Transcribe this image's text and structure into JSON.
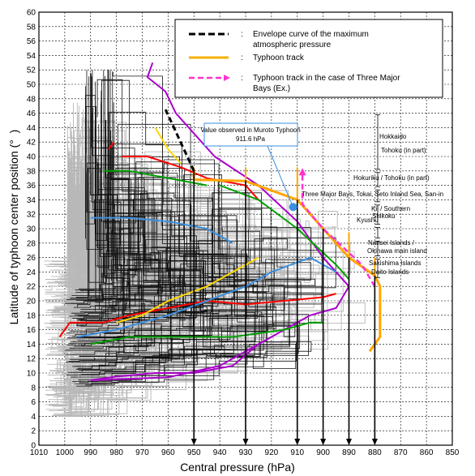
{
  "chart_data": {
    "type": "line",
    "xlabel": "Central pressure (hPa)",
    "ylabel": "Latitude of typhoon center position (°  )",
    "xlim": [
      1010,
      850
    ],
    "ylim": [
      0,
      60
    ],
    "x_ticks": [
      1010,
      1000,
      990,
      980,
      970,
      960,
      950,
      940,
      930,
      920,
      910,
      900,
      890,
      880,
      870,
      860,
      850
    ],
    "y_ticks": [
      0,
      2,
      4,
      6,
      8,
      10,
      12,
      14,
      16,
      18,
      20,
      22,
      24,
      26,
      28,
      30,
      32,
      34,
      36,
      38,
      40,
      42,
      44,
      46,
      48,
      50,
      52,
      54,
      56,
      58,
      60
    ],
    "grid": true,
    "legend": {
      "placement": "top-right",
      "entries": [
        {
          "label": "Envelope curve of the maximum atmospheric pressure",
          "style": "dashed",
          "color": "#000000"
        },
        {
          "label": "Typhoon track",
          "style": "solid",
          "color": "#f5b000"
        },
        {
          "label": "Typhoon track in the case of Three Major Bays (Ex.)",
          "style": "dashed-arrow",
          "color": "#ff33cc"
        }
      ],
      "separator": ":"
    },
    "annotation": {
      "text_line1": "Value observed in Muroto Typhoon",
      "text_line2": "911.6 hPa",
      "point": {
        "x": 911.6,
        "y": 33
      },
      "color": "#3a8fe0"
    },
    "regions": [
      {
        "label": "Hokkaido",
        "y_from": 38,
        "y_to": 46
      },
      {
        "label": "Tohoku (in part)",
        "y_from": 38,
        "y_to": 46
      },
      {
        "label": "Hokuriku / Tohoku (in part)",
        "y_from": 35.6,
        "y_to": 38
      },
      {
        "label": "Three Major Bays, Tokai, Seto Inland Sea, San-in",
        "y_from": 33.5,
        "y_to": 35.6
      },
      {
        "label": "Kii / Southern",
        "y_from": 30.4,
        "y_to": 33.5
      },
      {
        "label": "Shikoku",
        "y_from": 30.4,
        "y_to": 33.5
      },
      {
        "label": "Kyushu",
        "y_from": 28.5,
        "y_to": 30.4
      },
      {
        "label": "Nansei Islands /",
        "y_from": 26,
        "y_to": 28.5
      },
      {
        "label": "Okinawa main island",
        "y_from": 26,
        "y_to": 28.5
      },
      {
        "label": "Sakishima Islands",
        "y_from": 23,
        "y_to": 26
      },
      {
        "label": "Daito Islands",
        "y_from": 23,
        "y_to": 26
      }
    ],
    "envelope_curve": {
      "name": "Envelope curve of the maximum atmospheric pressure",
      "color": "#ffa500",
      "points": [
        [
          950,
          38
        ],
        [
          950,
          36.8
        ],
        [
          930,
          36.6
        ],
        [
          910,
          34
        ],
        [
          900,
          30
        ],
        [
          890,
          26
        ],
        [
          880,
          23.5
        ],
        [
          878,
          22
        ],
        [
          878,
          15
        ],
        [
          882,
          13
        ]
      ]
    },
    "envelope_extension": {
      "color": "#000000",
      "points": [
        [
          950,
          38
        ],
        [
          961,
          46.5
        ]
      ]
    },
    "three_bays_track": {
      "color": "#ff33cc",
      "points": [
        [
          880,
          22
        ],
        [
          885,
          25
        ],
        [
          900,
          30
        ],
        [
          908,
          33.4
        ],
        [
          908,
          37.5
        ]
      ]
    },
    "step_lines": [
      {
        "color": "#ffa500",
        "points": [
          [
            950,
            36.8
          ],
          [
            950,
            38.5
          ]
        ]
      },
      {
        "color": "#ffa500",
        "points": [
          [
            930,
            36.8
          ],
          [
            930,
            38.5
          ]
        ]
      },
      {
        "color": "#ffa500",
        "points": [
          [
            910,
            34
          ],
          [
            910,
            38.5
          ]
        ]
      },
      {
        "color": "#ffa500",
        "points": [
          [
            890,
            26
          ],
          [
            890,
            29.5
          ]
        ]
      },
      {
        "color": "#ffa500",
        "points": [
          [
            880,
            23.5
          ],
          [
            880,
            26
          ]
        ]
      }
    ],
    "arrows_to_axis": {
      "color": "#000000",
      "x_values": [
        950,
        930,
        910,
        900,
        890,
        880
      ],
      "y_from": [
        38,
        36.7,
        34,
        30,
        26,
        23.5
      ]
    },
    "highlight_tracks": [
      {
        "color": "#ff0000",
        "points": [
          [
            1002,
            15
          ],
          [
            998,
            17
          ],
          [
            985,
            17
          ],
          [
            975,
            18
          ],
          [
            960,
            19
          ],
          [
            945,
            20
          ],
          [
            930,
            19.5
          ],
          [
            915,
            20
          ],
          [
            900,
            20.5
          ],
          [
            895,
            21
          ]
        ]
      },
      {
        "color": "#ff0000",
        "points": [
          [
            978,
            40
          ],
          [
            968,
            40
          ],
          [
            955,
            38.5
          ],
          [
            945,
            37
          ],
          [
            930,
            36
          ],
          [
            925,
            34
          ]
        ]
      },
      {
        "color": "#ff0000",
        "points": [
          [
            983,
            41
          ],
          [
            981,
            42
          ]
        ]
      },
      {
        "color": "#aa00cc",
        "points": [
          [
            990,
            9
          ],
          [
            980,
            9.5
          ],
          [
            965,
            10
          ],
          [
            950,
            10
          ],
          [
            935,
            11
          ],
          [
            925,
            14
          ],
          [
            915,
            16
          ],
          [
            905,
            18
          ],
          [
            895,
            19
          ],
          [
            890,
            22
          ],
          [
            900,
            26
          ],
          [
            910,
            31
          ],
          [
            925,
            36
          ],
          [
            942,
            40
          ],
          [
            957,
            46
          ],
          [
            961,
            49
          ],
          [
            968,
            51
          ],
          [
            966,
            53
          ]
        ]
      },
      {
        "color": "#aa00cc",
        "points": [
          [
            990,
            9
          ],
          [
            960,
            9.4
          ],
          [
            940,
            11
          ],
          [
            920,
            15
          ]
        ]
      },
      {
        "color": "#3a8fe0",
        "points": [
          [
            995,
            15
          ],
          [
            980,
            16
          ],
          [
            960,
            18
          ],
          [
            945,
            20
          ],
          [
            930,
            22
          ],
          [
            920,
            24
          ],
          [
            905,
            26
          ],
          [
            895,
            24
          ]
        ]
      },
      {
        "color": "#3a8fe0",
        "points": [
          [
            990,
            31.5
          ],
          [
            975,
            31.5
          ],
          [
            960,
            31
          ],
          [
            945,
            30
          ],
          [
            935,
            28
          ]
        ]
      },
      {
        "color": "#00a000",
        "points": [
          [
            990,
            14
          ],
          [
            975,
            15
          ],
          [
            955,
            15
          ],
          [
            935,
            15
          ],
          [
            915,
            16
          ],
          [
            905,
            17
          ],
          [
            900,
            17
          ]
        ]
      },
      {
        "color": "#00a000",
        "points": [
          [
            940,
            36
          ],
          [
            925,
            34
          ],
          [
            910,
            30
          ],
          [
            895,
            25
          ],
          [
            890,
            23
          ]
        ]
      },
      {
        "color": "#ffd700",
        "points": [
          [
            980,
            17
          ],
          [
            970,
            18
          ],
          [
            960,
            20
          ],
          [
            945,
            22
          ],
          [
            935,
            24
          ],
          [
            925,
            26
          ]
        ]
      },
      {
        "color": "#ffd700",
        "points": [
          [
            965,
            44
          ],
          [
            960,
            41
          ],
          [
            955,
            39
          ]
        ]
      },
      {
        "color": "#00a000",
        "points": [
          [
            985,
            38
          ],
          [
            975,
            38
          ],
          [
            960,
            37
          ],
          [
            945,
            36
          ]
        ]
      }
    ]
  }
}
